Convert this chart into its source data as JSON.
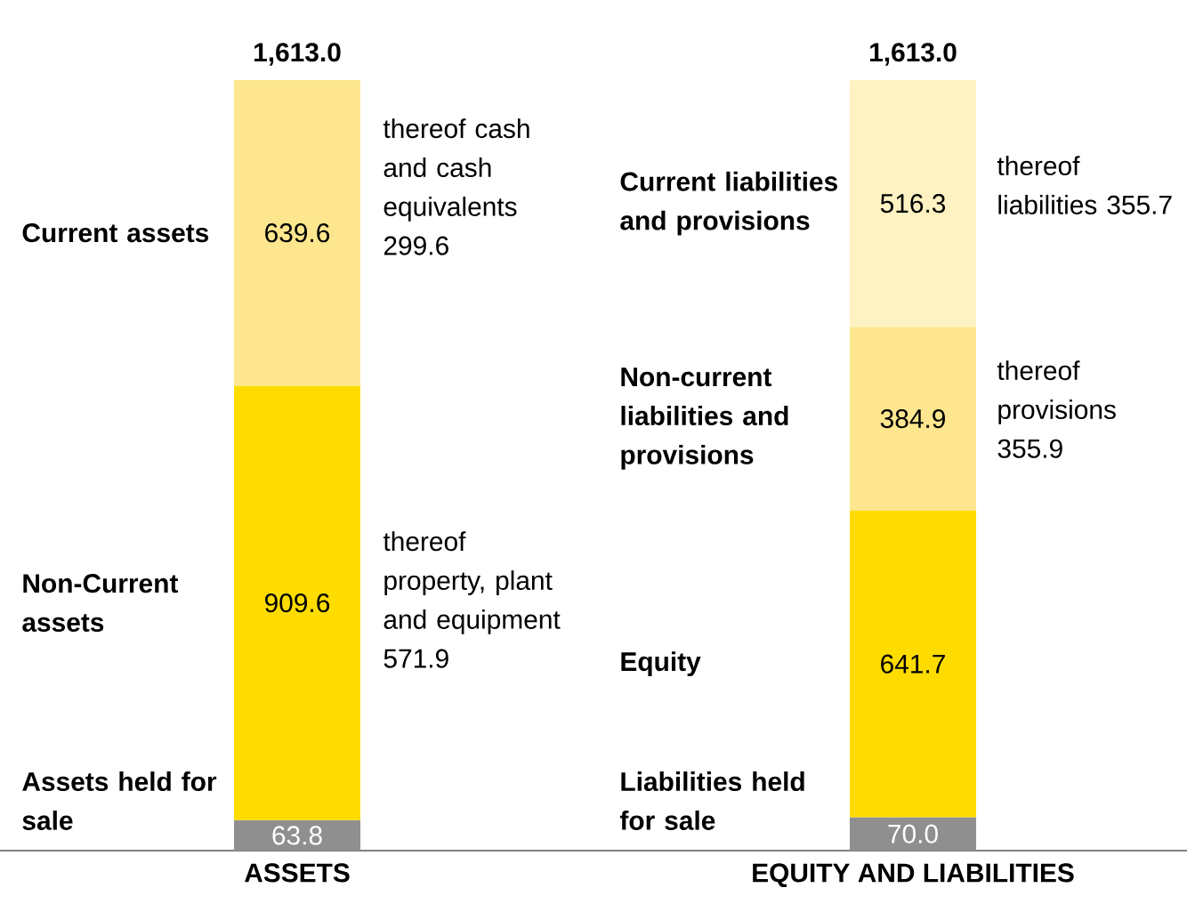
{
  "chart_data": {
    "type": "bar",
    "stacked": true,
    "categories": [
      "ASSETS",
      "EQUITY AND LIABILITIES"
    ],
    "series": [
      {
        "color": "#8f8f8f",
        "values": [
          63.8,
          70.0
        ],
        "value_labels": [
          "63.8",
          "70.0"
        ]
      },
      {
        "color": "#ffdc00",
        "values": [
          909.6,
          641.7
        ],
        "value_labels": [
          "909.6",
          "641.7"
        ]
      },
      {
        "color": "#fde68e",
        "values": [
          639.6,
          384.9
        ],
        "value_labels": [
          "639.6",
          "384.9"
        ]
      },
      {
        "color": "#fff2c2",
        "values": [
          null,
          516.3
        ],
        "value_labels": [
          null,
          "516.3"
        ]
      }
    ],
    "totals": [
      "1,613.0",
      "1,613.0"
    ],
    "annotations": [
      "Assets held for sale",
      "Liabilities held for sale",
      "Non-Current assets",
      "Equity",
      "Current assets",
      "Non-current liabilities and provisions",
      "Current liabilities and provisions",
      "thereof property, plant and equipment 571.9",
      "thereof cash and cash equivalents 299.6",
      "thereof provisions 355.9",
      "thereof liabilities 355.7"
    ]
  }
}
